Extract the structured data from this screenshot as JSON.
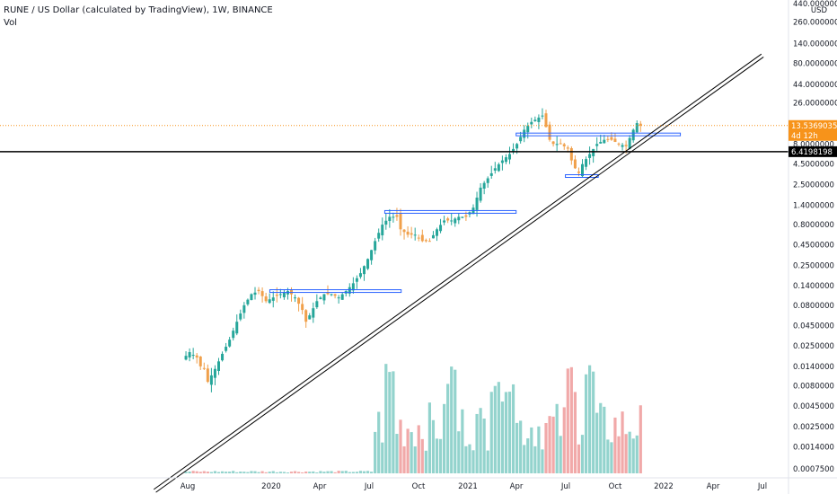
{
  "header": {
    "title": "RUNE / US Dollar (calculated by TradingView), 1W, BINANCE",
    "indicator": "Vol"
  },
  "colors": {
    "up": "#26a69a",
    "down": "#f0a04b",
    "trendline": "#000000",
    "zone": "#2962ff",
    "price_tag_bg": "#f7931a",
    "level_tag_bg": "#000000",
    "vol_up": "#80cbc4",
    "vol_down": "#ef9a9a"
  },
  "chart_data": {
    "type": "candlestick",
    "title": "RUNE / US Dollar (calculated by TradingView), 1W, BINANCE",
    "x_ticks": [
      "Aug",
      "2020",
      "Apr",
      "Jul",
      "Oct",
      "2021",
      "Apr",
      "Jul",
      "Oct",
      "2022",
      "Apr",
      "Jul"
    ],
    "y_scale": "log",
    "y_unit": "USD",
    "y_ticks": [
      "440.0000000",
      "260.0000000",
      "140.0000000",
      "80.0000000",
      "44.0000000",
      "26.0000000",
      "8.0000000",
      "4.5000000",
      "2.5000000",
      "1.4000000",
      "0.8000000",
      "0.4500000",
      "0.2500000",
      "0.1400000",
      "0.0800000",
      "0.0450000",
      "0.0250000",
      "0.0140000",
      "0.0080000",
      "0.0045000",
      "0.0025000",
      "0.0014000",
      "0.0007500"
    ],
    "current_price": "13.5369035",
    "countdown": "4d 12h",
    "horizontal_level": "6.4198198",
    "price_path": [
      [
        0,
        0.017
      ],
      [
        2,
        0.021
      ],
      [
        4,
        0.018
      ],
      [
        5,
        0.014
      ],
      [
        6,
        0.013
      ],
      [
        7,
        0.009
      ],
      [
        9,
        0.013
      ],
      [
        11,
        0.02
      ],
      [
        13,
        0.03
      ],
      [
        15,
        0.05
      ],
      [
        17,
        0.08
      ],
      [
        19,
        0.11
      ],
      [
        21,
        0.12
      ],
      [
        23,
        0.09
      ],
      [
        25,
        0.1
      ],
      [
        27,
        0.11
      ],
      [
        29,
        0.12
      ],
      [
        31,
        0.1
      ],
      [
        33,
        0.07
      ],
      [
        34,
        0.05
      ],
      [
        35,
        0.06
      ],
      [
        37,
        0.09
      ],
      [
        39,
        0.11
      ],
      [
        41,
        0.11
      ],
      [
        43,
        0.1
      ],
      [
        45,
        0.12
      ],
      [
        47,
        0.15
      ],
      [
        49,
        0.2
      ],
      [
        51,
        0.3
      ],
      [
        53,
        0.5
      ],
      [
        55,
        0.8
      ],
      [
        57,
        1.0
      ],
      [
        59,
        1.0
      ],
      [
        60,
        0.7
      ],
      [
        62,
        0.6
      ],
      [
        64,
        0.6
      ],
      [
        66,
        0.5
      ],
      [
        68,
        0.5
      ],
      [
        70,
        0.7
      ],
      [
        72,
        0.9
      ],
      [
        74,
        0.9
      ],
      [
        76,
        1.0
      ],
      [
        78,
        1.0
      ],
      [
        80,
        1.3
      ],
      [
        82,
        2.3
      ],
      [
        84,
        3.0
      ],
      [
        86,
        4.0
      ],
      [
        88,
        5.0
      ],
      [
        90,
        6.0
      ],
      [
        92,
        8.0
      ],
      [
        94,
        12.0
      ],
      [
        96,
        15.0
      ],
      [
        98,
        17.0
      ],
      [
        99,
        18.0
      ],
      [
        100,
        13.0
      ],
      [
        101,
        9.0
      ],
      [
        102,
        8.0
      ],
      [
        104,
        8.0
      ],
      [
        106,
        7.0
      ],
      [
        107,
        5.0
      ],
      [
        108,
        4.0
      ],
      [
        109,
        3.5
      ],
      [
        110,
        4.5
      ],
      [
        112,
        6.0
      ],
      [
        114,
        8.0
      ],
      [
        116,
        9.0
      ],
      [
        118,
        9.0
      ],
      [
        120,
        8.0
      ],
      [
        122,
        7.5
      ],
      [
        124,
        12.0
      ],
      [
        125,
        14.5
      ],
      [
        126,
        13.5
      ]
    ],
    "trendline_points": [
      [
        "2019-06",
        0.0004
      ],
      [
        "2022-07",
        100
      ]
    ],
    "zones": [
      {
        "from": "2020-01",
        "to": "2020-09",
        "level": 0.12
      },
      {
        "from": "2020-08",
        "to": "2021-04",
        "level": 1.15
      },
      {
        "from": "2021-07",
        "to": "2021-09",
        "level": 3.2
      },
      {
        "from": "2021-04",
        "to": "2022-02",
        "level": 10.5
      }
    ],
    "volume_axis": "relative",
    "volume_peak_weeks": [
      57,
      74,
      86,
      90,
      107,
      112
    ]
  }
}
